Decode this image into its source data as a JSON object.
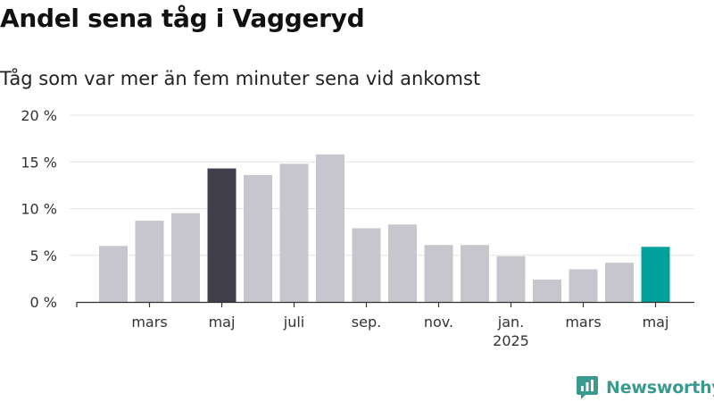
{
  "header": {
    "title": "Andel sena tåg i Vaggeryd",
    "subtitle": "Tåg som var mer än fem minuter sena vid ankomst"
  },
  "chart_data": {
    "type": "bar",
    "title": "Andel sena tåg i Vaggeryd",
    "subtitle": "Tåg som var mer än fem minuter sena vid ankomst",
    "categories": [
      "2024-02",
      "2024-03",
      "2024-04",
      "2024-05",
      "2024-06",
      "2024-07",
      "2024-08",
      "2024-09",
      "2024-10",
      "2024-11",
      "2024-12",
      "2025-01",
      "2025-02",
      "2025-03",
      "2025-04",
      "2025-05"
    ],
    "values": [
      6.0,
      8.7,
      9.5,
      14.3,
      13.6,
      14.8,
      15.8,
      7.9,
      8.3,
      6.1,
      6.1,
      4.9,
      2.4,
      3.5,
      4.2,
      5.9
    ],
    "highlight": {
      "2024-05": "#3f3e4a",
      "2025-05": "#00a19a"
    },
    "bar_color": "#c7c6cd",
    "ylim": [
      0,
      20
    ],
    "yticks": [
      {
        "value": 0,
        "label": "0 %"
      },
      {
        "value": 5,
        "label": "5 %"
      },
      {
        "value": 10,
        "label": "10 %"
      },
      {
        "value": 15,
        "label": "15 %"
      },
      {
        "value": 20,
        "label": "20 %"
      }
    ],
    "xticks": [
      {
        "category": "2024-03",
        "label": "mars"
      },
      {
        "category": "2024-05",
        "label": "maj"
      },
      {
        "category": "2024-07",
        "label": "juli"
      },
      {
        "category": "2024-09",
        "label": "sep."
      },
      {
        "category": "2024-11",
        "label": "nov."
      },
      {
        "category": "2025-01",
        "label": "jan.",
        "sublabel": "2025"
      },
      {
        "category": "2025-03",
        "label": "mars"
      },
      {
        "category": "2025-05",
        "label": "maj"
      }
    ],
    "grid": true,
    "xlabel": "",
    "ylabel": ""
  },
  "footer": {
    "brand": "Newsworthy",
    "logo_icon": "newsworthy-logo-icon",
    "brand_color": "#3b9a8f"
  }
}
